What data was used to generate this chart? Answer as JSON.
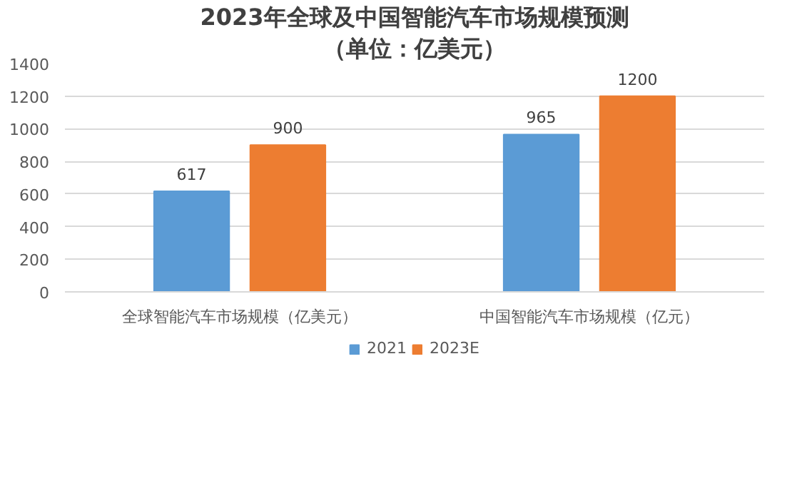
{
  "chart_data": {
    "type": "bar",
    "title": "2023年全球及中国智能汽车市场规模预测",
    "subtitle": "（单位：亿美元）",
    "categories": [
      "全球智能汽车市场规模（亿美元）",
      "中国智能汽车市场规模（亿元）"
    ],
    "series": [
      {
        "name": "2021",
        "color": "#5b9bd5",
        "values": [
          617,
          965
        ]
      },
      {
        "name": "2023E",
        "color": "#ed7d31",
        "values": [
          900,
          1200
        ]
      }
    ],
    "ylim": [
      0,
      1400
    ],
    "yticks": [
      0,
      200,
      400,
      600,
      800,
      1000,
      1200,
      1400
    ],
    "grid": "y",
    "legend": "bottom",
    "data_labels": true
  }
}
